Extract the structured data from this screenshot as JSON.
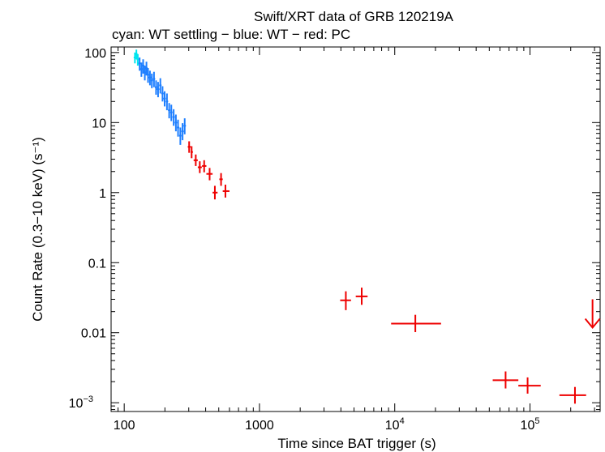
{
  "chart_data": {
    "type": "scatter",
    "title": "Swift/XRT data of GRB 120219A",
    "subtitle": "cyan: WT settling − blue: WT − red: PC",
    "xlabel": "Time since BAT trigger (s)",
    "ylabel": "Count Rate (0.3−10 keV) (s⁻¹)",
    "xscale": "log",
    "yscale": "log",
    "xlim": [
      80,
      330000
    ],
    "ylim": [
      0.00075,
      120
    ],
    "x_ticks": [
      {
        "value": 100,
        "label": "100"
      },
      {
        "value": 1000,
        "label": "1000"
      },
      {
        "value": 10000,
        "label": "10",
        "exp": "4"
      },
      {
        "value": 100000,
        "label": "10",
        "exp": "5"
      }
    ],
    "y_ticks": [
      {
        "value": 100,
        "label": "100"
      },
      {
        "value": 10,
        "label": "10"
      },
      {
        "value": 1,
        "label": "1"
      },
      {
        "value": 0.1,
        "label": "0.1"
      },
      {
        "value": 0.01,
        "label": "0.01"
      },
      {
        "value": 0.001,
        "label": "10",
        "exp": "−3"
      }
    ],
    "series": [
      {
        "name": "WT settling",
        "color": "#00e5ee",
        "points": [
          {
            "x": 120,
            "y": 85,
            "ylo": 70,
            "yhi": 100
          },
          {
            "x": 123,
            "y": 95,
            "ylo": 80,
            "yhi": 110
          },
          {
            "x": 126,
            "y": 80,
            "ylo": 65,
            "yhi": 95
          }
        ]
      },
      {
        "name": "WT",
        "color": "#1e7fff",
        "points": [
          {
            "x": 130,
            "y": 70,
            "ylo": 55,
            "yhi": 85
          },
          {
            "x": 134,
            "y": 58,
            "ylo": 45,
            "yhi": 72
          },
          {
            "x": 138,
            "y": 65,
            "ylo": 50,
            "yhi": 80
          },
          {
            "x": 142,
            "y": 52,
            "ylo": 40,
            "yhi": 65
          },
          {
            "x": 146,
            "y": 60,
            "ylo": 47,
            "yhi": 74
          },
          {
            "x": 150,
            "y": 48,
            "ylo": 37,
            "yhi": 60
          },
          {
            "x": 155,
            "y": 44,
            "ylo": 34,
            "yhi": 55
          },
          {
            "x": 160,
            "y": 40,
            "ylo": 31,
            "yhi": 50
          },
          {
            "x": 166,
            "y": 42,
            "ylo": 32,
            "yhi": 53
          },
          {
            "x": 172,
            "y": 32,
            "ylo": 25,
            "yhi": 40
          },
          {
            "x": 178,
            "y": 30,
            "ylo": 23,
            "yhi": 38
          },
          {
            "x": 185,
            "y": 34,
            "ylo": 26,
            "yhi": 43
          },
          {
            "x": 192,
            "y": 26,
            "ylo": 20,
            "yhi": 33
          },
          {
            "x": 199,
            "y": 22,
            "ylo": 17,
            "yhi": 28
          },
          {
            "x": 207,
            "y": 20,
            "ylo": 15,
            "yhi": 26
          },
          {
            "x": 215,
            "y": 15,
            "ylo": 11.5,
            "yhi": 19
          },
          {
            "x": 223,
            "y": 14,
            "ylo": 10.5,
            "yhi": 18
          },
          {
            "x": 232,
            "y": 12,
            "ylo": 9,
            "yhi": 15.5
          },
          {
            "x": 241,
            "y": 10,
            "ylo": 7.5,
            "yhi": 13
          },
          {
            "x": 250,
            "y": 8.5,
            "ylo": 6.3,
            "yhi": 11
          },
          {
            "x": 260,
            "y": 6.5,
            "ylo": 4.8,
            "yhi": 8.5
          },
          {
            "x": 270,
            "y": 7.5,
            "ylo": 5.6,
            "yhi": 9.8
          },
          {
            "x": 280,
            "y": 9,
            "ylo": 6.8,
            "yhi": 11.5
          }
        ]
      },
      {
        "name": "PC",
        "color": "#ee0000",
        "points": [
          {
            "x": 302,
            "y": 4.5,
            "xlo": 295,
            "xhi": 310,
            "ylo": 3.7,
            "yhi": 5.4
          },
          {
            "x": 315,
            "y": 3.8,
            "xlo": 310,
            "xhi": 322,
            "ylo": 3.1,
            "yhi": 4.6
          },
          {
            "x": 338,
            "y": 2.9,
            "xlo": 326,
            "xhi": 350,
            "ylo": 2.4,
            "yhi": 3.5
          },
          {
            "x": 362,
            "y": 2.3,
            "xlo": 350,
            "xhi": 375,
            "ylo": 1.9,
            "yhi": 2.8
          },
          {
            "x": 390,
            "y": 2.4,
            "xlo": 376,
            "xhi": 405,
            "ylo": 1.95,
            "yhi": 2.9
          },
          {
            "x": 428,
            "y": 1.85,
            "xlo": 405,
            "xhi": 450,
            "ylo": 1.5,
            "yhi": 2.25
          },
          {
            "x": 468,
            "y": 1.0,
            "xlo": 450,
            "xhi": 490,
            "ylo": 0.8,
            "yhi": 1.25
          },
          {
            "x": 520,
            "y": 1.55,
            "xlo": 505,
            "xhi": 535,
            "ylo": 1.25,
            "yhi": 1.9
          },
          {
            "x": 560,
            "y": 1.05,
            "xlo": 535,
            "xhi": 600,
            "ylo": 0.85,
            "yhi": 1.3
          },
          {
            "x": 4350,
            "y": 0.029,
            "xlo": 3950,
            "xhi": 4750,
            "ylo": 0.021,
            "yhi": 0.039
          },
          {
            "x": 5700,
            "y": 0.033,
            "xlo": 5150,
            "xhi": 6300,
            "ylo": 0.025,
            "yhi": 0.044
          },
          {
            "x": 14200,
            "y": 0.0135,
            "xlo": 9400,
            "xhi": 22000,
            "ylo": 0.0102,
            "yhi": 0.018
          },
          {
            "x": 66000,
            "y": 0.0021,
            "xlo": 53000,
            "xhi": 82000,
            "ylo": 0.0016,
            "yhi": 0.0028
          },
          {
            "x": 96000,
            "y": 0.00175,
            "xlo": 82000,
            "xhi": 120000,
            "ylo": 0.00135,
            "yhi": 0.0023
          },
          {
            "x": 215000,
            "y": 0.00128,
            "xlo": 165000,
            "xhi": 260000,
            "ylo": 0.00097,
            "yhi": 0.00168
          }
        ]
      }
    ],
    "upper_limits": [
      {
        "x": 290000,
        "y": 0.03,
        "color": "#ee0000"
      }
    ],
    "grid": false,
    "legend": "none"
  }
}
